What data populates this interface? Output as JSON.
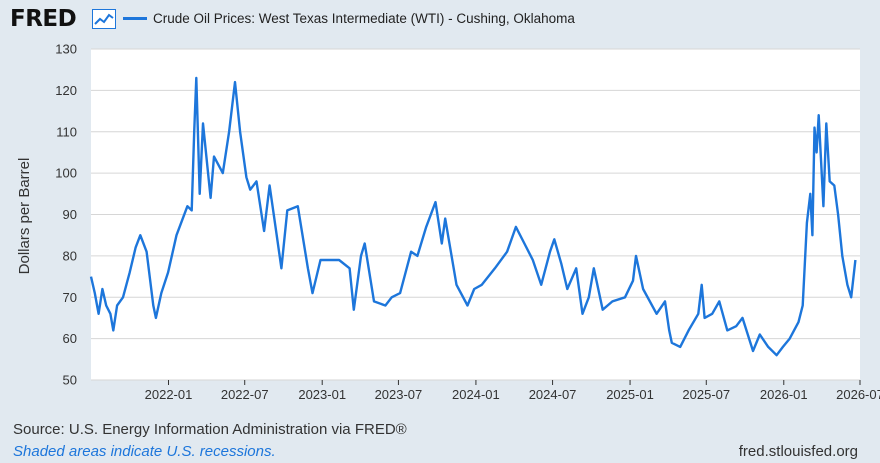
{
  "header": {
    "logo_text": "FRED",
    "logo_icon": "line-chart-icon",
    "series_label": "Crude Oil Prices: West Texas Intermediate (WTI) - Cushing, Oklahoma"
  },
  "colors": {
    "series": "#1d76db",
    "plot_bg": "#ffffff",
    "page_bg": "#e1e9f0",
    "grid": "#d6d6d6"
  },
  "chart_data": {
    "type": "line",
    "title": "",
    "xlabel": "",
    "ylabel": "Dollars per Barrel",
    "ylim": [
      50,
      130
    ],
    "xlim": [
      "2021-07-01",
      "2026-07-01"
    ],
    "yticks": [
      50,
      60,
      70,
      80,
      90,
      100,
      110,
      120,
      130
    ],
    "xticks": [
      "2022-01",
      "2022-07",
      "2023-01",
      "2023-07",
      "2024-01",
      "2024-07",
      "2025-01",
      "2025-07",
      "2026-01",
      "2026-07"
    ],
    "grid": "horizontal",
    "series": [
      {
        "name": "Crude Oil Prices: West Texas Intermediate (WTI) - Cushing, Oklahoma",
        "points": [
          [
            "2021-07-01",
            75
          ],
          [
            "2021-07-10",
            71
          ],
          [
            "2021-07-19",
            66
          ],
          [
            "2021-07-28",
            72
          ],
          [
            "2021-08-06",
            68
          ],
          [
            "2021-08-16",
            66
          ],
          [
            "2021-08-23",
            62
          ],
          [
            "2021-09-01",
            68
          ],
          [
            "2021-09-15",
            70
          ],
          [
            "2021-10-01",
            76
          ],
          [
            "2021-10-15",
            82
          ],
          [
            "2021-10-26",
            85
          ],
          [
            "2021-11-10",
            81
          ],
          [
            "2021-11-26",
            68
          ],
          [
            "2021-12-02",
            65
          ],
          [
            "2021-12-15",
            71
          ],
          [
            "2021-12-31",
            76
          ],
          [
            "2022-01-20",
            85
          ],
          [
            "2022-02-15",
            92
          ],
          [
            "2022-02-25",
            91
          ],
          [
            "2022-03-03",
            110
          ],
          [
            "2022-03-08",
            123
          ],
          [
            "2022-03-16",
            95
          ],
          [
            "2022-03-24",
            112
          ],
          [
            "2022-04-11",
            94
          ],
          [
            "2022-04-19",
            104
          ],
          [
            "2022-05-10",
            100
          ],
          [
            "2022-05-25",
            110
          ],
          [
            "2022-06-08",
            122
          ],
          [
            "2022-06-20",
            110
          ],
          [
            "2022-07-05",
            99
          ],
          [
            "2022-07-14",
            96
          ],
          [
            "2022-07-29",
            98
          ],
          [
            "2022-08-16",
            86
          ],
          [
            "2022-08-29",
            97
          ],
          [
            "2022-09-15",
            85
          ],
          [
            "2022-09-26",
            77
          ],
          [
            "2022-10-10",
            91
          ],
          [
            "2022-11-04",
            92
          ],
          [
            "2022-11-28",
            77
          ],
          [
            "2022-12-09",
            71
          ],
          [
            "2022-12-28",
            79
          ],
          [
            "2023-01-15",
            79
          ],
          [
            "2023-02-10",
            79
          ],
          [
            "2023-03-07",
            77
          ],
          [
            "2023-03-17",
            67
          ],
          [
            "2023-04-03",
            80
          ],
          [
            "2023-04-12",
            83
          ],
          [
            "2023-05-04",
            69
          ],
          [
            "2023-05-31",
            68
          ],
          [
            "2023-06-15",
            70
          ],
          [
            "2023-07-05",
            71
          ],
          [
            "2023-07-31",
            81
          ],
          [
            "2023-08-15",
            80
          ],
          [
            "2023-09-05",
            87
          ],
          [
            "2023-09-27",
            93
          ],
          [
            "2023-10-12",
            83
          ],
          [
            "2023-10-20",
            89
          ],
          [
            "2023-11-16",
            73
          ],
          [
            "2023-12-12",
            68
          ],
          [
            "2023-12-28",
            72
          ],
          [
            "2024-01-15",
            73
          ],
          [
            "2024-02-15",
            77
          ],
          [
            "2024-03-15",
            81
          ],
          [
            "2024-04-05",
            87
          ],
          [
            "2024-04-25",
            83
          ],
          [
            "2024-05-15",
            79
          ],
          [
            "2024-06-04",
            73
          ],
          [
            "2024-06-25",
            81
          ],
          [
            "2024-07-05",
            84
          ],
          [
            "2024-07-22",
            78
          ],
          [
            "2024-08-05",
            72
          ],
          [
            "2024-08-26",
            77
          ],
          [
            "2024-09-10",
            66
          ],
          [
            "2024-09-25",
            70
          ],
          [
            "2024-10-07",
            77
          ],
          [
            "2024-10-28",
            67
          ],
          [
            "2024-11-20",
            69
          ],
          [
            "2024-12-20",
            70
          ],
          [
            "2025-01-08",
            74
          ],
          [
            "2025-01-15",
            80
          ],
          [
            "2025-02-01",
            72
          ],
          [
            "2025-03-05",
            66
          ],
          [
            "2025-03-25",
            69
          ],
          [
            "2025-04-04",
            62
          ],
          [
            "2025-04-10",
            59
          ],
          [
            "2025-04-30",
            58
          ],
          [
            "2025-05-20",
            62
          ],
          [
            "2025-06-12",
            66
          ],
          [
            "2025-06-20",
            73
          ],
          [
            "2025-06-27",
            65
          ],
          [
            "2025-07-15",
            66
          ],
          [
            "2025-08-01",
            69
          ],
          [
            "2025-08-20",
            62
          ],
          [
            "2025-09-10",
            63
          ],
          [
            "2025-09-25",
            65
          ],
          [
            "2025-10-20",
            57
          ],
          [
            "2025-11-05",
            61
          ],
          [
            "2025-11-25",
            58
          ],
          [
            "2025-12-15",
            56
          ],
          [
            "2025-12-30",
            58
          ],
          [
            "2026-01-15",
            60
          ],
          [
            "2026-02-05",
            64
          ],
          [
            "2026-02-15",
            68
          ],
          [
            "2026-02-25",
            88
          ],
          [
            "2026-03-05",
            95
          ],
          [
            "2026-03-10",
            85
          ],
          [
            "2026-03-15",
            111
          ],
          [
            "2026-03-20",
            105
          ],
          [
            "2026-03-25",
            114
          ],
          [
            "2026-04-05",
            92
          ],
          [
            "2026-04-12",
            112
          ],
          [
            "2026-04-20",
            98
          ],
          [
            "2026-05-01",
            97
          ],
          [
            "2026-05-10",
            90
          ],
          [
            "2026-05-20",
            80
          ],
          [
            "2026-06-01",
            73
          ],
          [
            "2026-06-10",
            70
          ],
          [
            "2026-06-20",
            79
          ]
        ]
      }
    ]
  },
  "footer": {
    "source": "Source: U.S. Energy Information Administration via FRED®",
    "recession_note": "Shaded areas indicate U.S. recessions.",
    "site": "fred.stlouisfed.org"
  }
}
